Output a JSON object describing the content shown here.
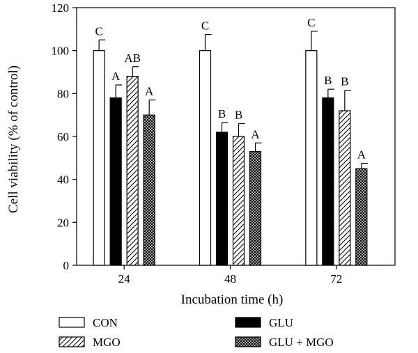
{
  "chart_data": {
    "type": "bar",
    "xlabel": "Incubation time (h)",
    "ylabel": "Cell viability (% of control)",
    "ylim": [
      0,
      120
    ],
    "yticks": [
      0,
      20,
      40,
      60,
      80,
      100,
      120
    ],
    "categories": [
      "24",
      "48",
      "72"
    ],
    "grid": false,
    "legend_position": "bottom",
    "series": [
      {
        "name": "CON",
        "pattern": "white",
        "values": [
          100,
          100,
          100
        ],
        "errors": [
          5,
          7.5,
          9
        ],
        "labels": [
          "C",
          "C",
          "C"
        ]
      },
      {
        "name": "GLU",
        "pattern": "black",
        "values": [
          78,
          62,
          78
        ],
        "errors": [
          6,
          4.5,
          4
        ],
        "labels": [
          "A",
          "B",
          "B"
        ]
      },
      {
        "name": "MGO",
        "pattern": "hatch",
        "values": [
          88,
          60,
          72
        ],
        "errors": [
          4.5,
          6,
          9.5
        ],
        "labels": [
          "AB",
          "B",
          "B"
        ]
      },
      {
        "name": "GLU + MGO",
        "pattern": "crosshatch",
        "values": [
          70,
          53,
          45
        ],
        "errors": [
          7,
          4,
          2.5
        ],
        "labels": [
          "A",
          "A",
          "A"
        ]
      }
    ]
  }
}
